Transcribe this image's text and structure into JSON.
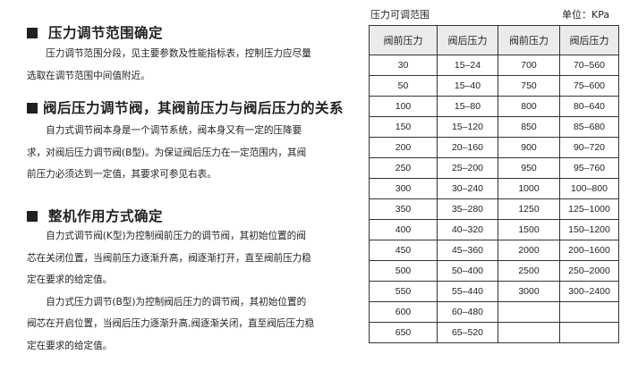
{
  "sections": [
    {
      "heading": "压力调节范围确定",
      "lines": [
        "　　压力调节范围分段，见主要参数及性能指标表，控制压力应尽量",
        "选取在调节范围中间值附近。"
      ]
    },
    {
      "heading": "阀后压力调节阀，其阀前压力与阀后压力的关系",
      "lines": [
        "　　自力式调节阀本身是一个调节系统，阀本身又有一定的压降要",
        "求，对阀后压力调节阀(B型)。为保证阀后压力在一定范围内，其阀",
        "前压力必须达到一定值，其要求可参见右表。"
      ]
    },
    {
      "heading": "整机作用方式确定",
      "lines": [
        "　　自力式调节阀(K型)为控制阀前压力的调节阀，其初始位置的阀",
        "芯在关闭位置，当阀前压力逐渐升高，阀逐渐打开，直至阀前压力稳",
        "定在要求的给定值。",
        "　　自力式压力调节(B型)为控制阀后压力的调节阀，其初始位置的",
        "阀芯在开启位置，当阀后压力逐渐升高,阀逐渐关闭，直至阀后压力稳",
        "定在要求的给定值。"
      ]
    }
  ],
  "table": {
    "caption": "压力可调范围",
    "unit": "单位：KPa",
    "headers": [
      "阀前压力",
      "阀后压力",
      "阀前压力",
      "阀后压力"
    ],
    "rows": [
      [
        "30",
        "15–24",
        "700",
        "70–560"
      ],
      [
        "50",
        "15–40",
        "750",
        "75–600"
      ],
      [
        "100",
        "15–80",
        "800",
        "80–640"
      ],
      [
        "150",
        "15–120",
        "850",
        "85–680"
      ],
      [
        "200",
        "20–160",
        "900",
        "90–720"
      ],
      [
        "250",
        "25–200",
        "950",
        "95–760"
      ],
      [
        "300",
        "30–240",
        "1000",
        "100–800"
      ],
      [
        "350",
        "35–280",
        "1250",
        "125–1000"
      ],
      [
        "400",
        "40–320",
        "1500",
        "150–1200"
      ],
      [
        "450",
        "45–360",
        "2000",
        "200–1600"
      ],
      [
        "500",
        "50–400",
        "2500",
        "250–2000"
      ],
      [
        "550",
        "55–440",
        "3000",
        "300–2400"
      ],
      [
        "600",
        "60–480",
        "",
        ""
      ],
      [
        "650",
        "65–520",
        "",
        ""
      ]
    ]
  }
}
